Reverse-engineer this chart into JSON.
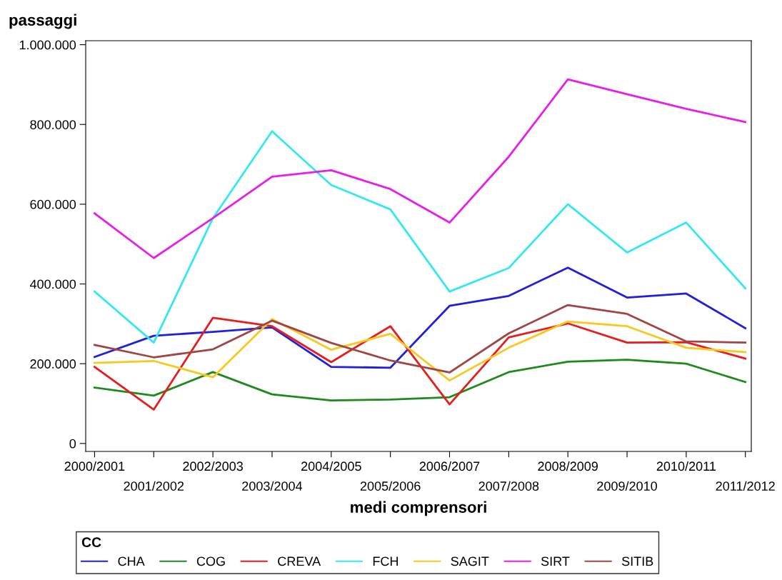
{
  "chart_data": {
    "type": "line",
    "ylabel": "passaggi",
    "xlabel": "medi comprensori",
    "legend_title": "CC",
    "categories": [
      "2000/2001",
      "2001/2002",
      "2002/2003",
      "2003/2004",
      "2004/2005",
      "2005/2006",
      "2006/2007",
      "2007/2008",
      "2008/2009",
      "2009/2010",
      "2010/2011",
      "2011/2012"
    ],
    "series": [
      {
        "name": "CHA",
        "color": "#1f1fe0",
        "values": [
          217000,
          270000,
          280000,
          291000,
          192000,
          190000,
          345000,
          370000,
          441000,
          366000,
          376000,
          289000
        ]
      },
      {
        "name": "COG",
        "color": "#1e8a1e",
        "values": [
          140000,
          120000,
          179000,
          123000,
          108000,
          110000,
          116000,
          179000,
          205000,
          210000,
          200000,
          154000
        ]
      },
      {
        "name": "CREVA",
        "color": "#e81c1c",
        "values": [
          192000,
          85000,
          315000,
          294000,
          204000,
          294000,
          98000,
          266000,
          301000,
          253000,
          254000,
          213000
        ]
      },
      {
        "name": "FCH",
        "color": "#33e8f0",
        "values": [
          381000,
          253000,
          565000,
          783000,
          648000,
          587000,
          381000,
          440000,
          600000,
          479000,
          554000,
          389000
        ]
      },
      {
        "name": "SAGIT",
        "color": "#f7c81e",
        "values": [
          202000,
          207000,
          166000,
          312000,
          235000,
          275000,
          158000,
          240000,
          306000,
          294000,
          240000,
          229000
        ]
      },
      {
        "name": "SIRT",
        "color": "#e81ee8",
        "values": [
          577000,
          465000,
          565000,
          669000,
          685000,
          638000,
          554000,
          719000,
          913000,
          876000,
          839000,
          806000
        ]
      },
      {
        "name": "SITIB",
        "color": "#a04444",
        "values": [
          247000,
          216000,
          236000,
          308000,
          252000,
          208000,
          178000,
          276000,
          347000,
          325000,
          256000,
          253000
        ]
      }
    ],
    "ylim": [
      -20000,
      1010000
    ],
    "yticks": [
      0,
      {
        "value": 200000,
        "label": "200.000"
      },
      {
        "value": 400000,
        "label": "400.000"
      },
      {
        "value": 600000,
        "label": "600.000"
      },
      {
        "value": 800000,
        "label": "800.000"
      },
      {
        "value": 1000000,
        "label": "1.000.000"
      }
    ],
    "grid": false,
    "legend": "bottom",
    "marker": "none",
    "line_style": "solid"
  }
}
